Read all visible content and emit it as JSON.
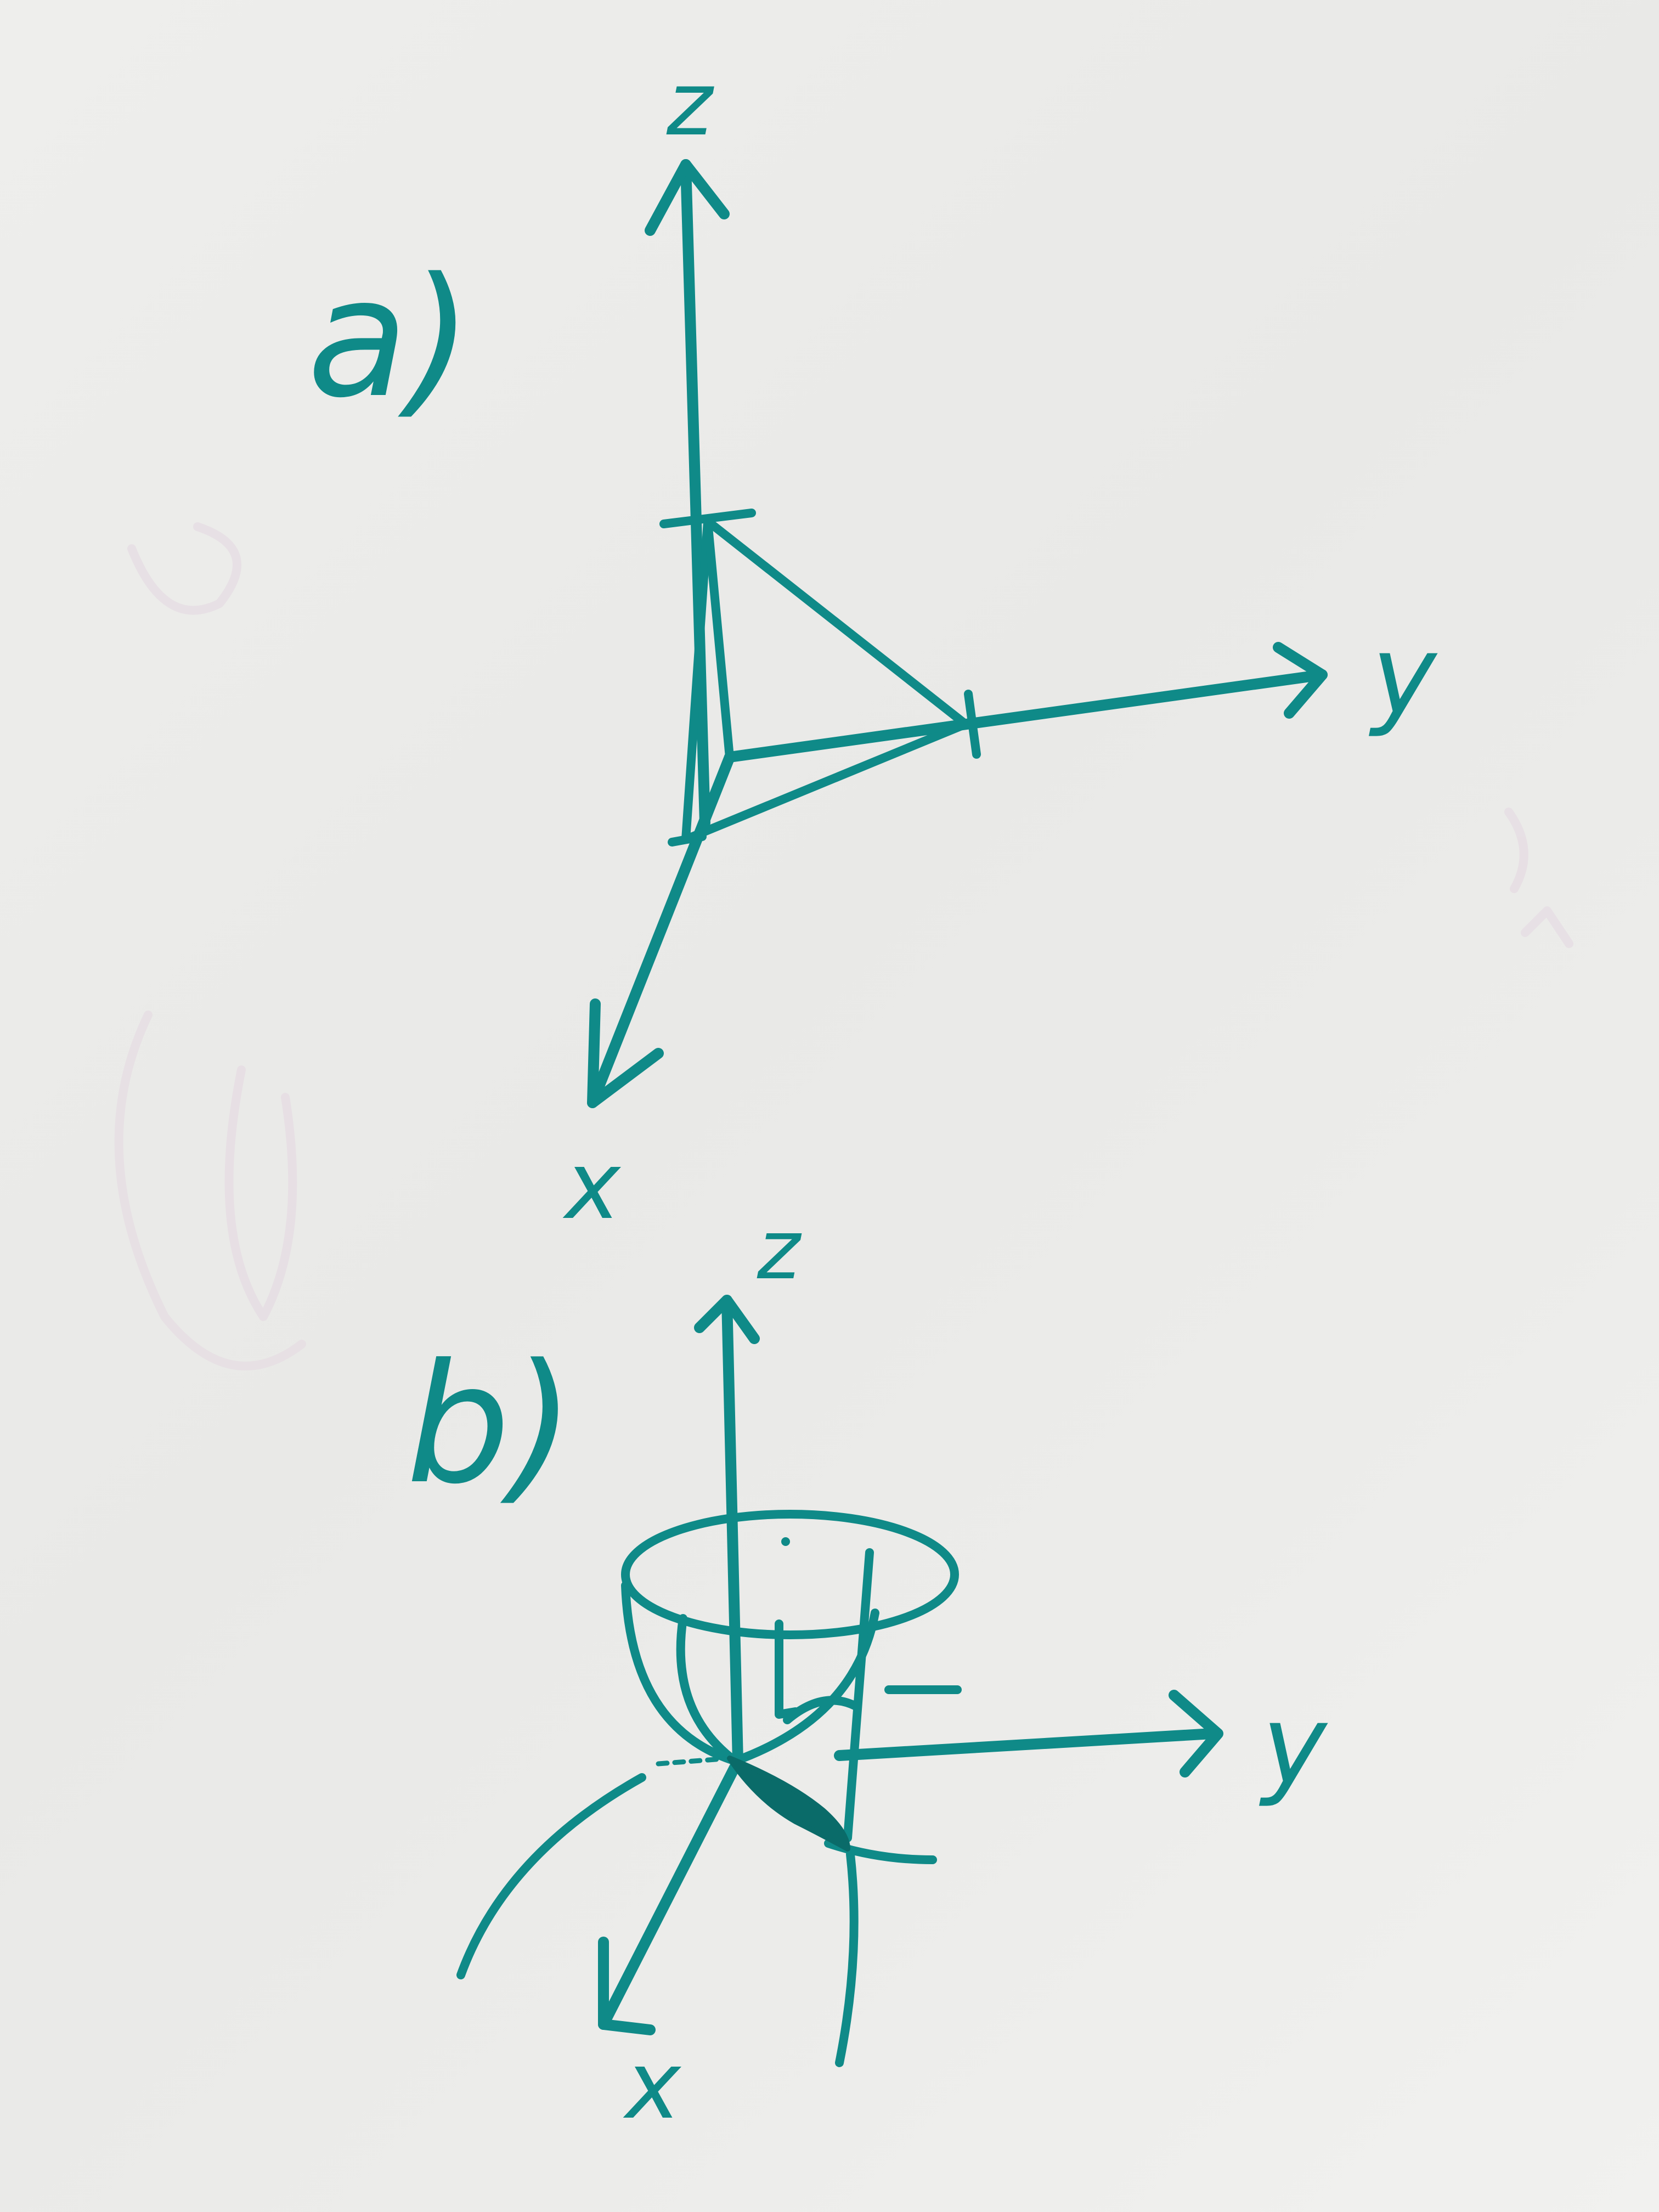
{
  "colors": {
    "paper": "#ececea",
    "ink": "#0f8a88",
    "ink_dark": "#0a6b69",
    "ghost": "#e3d9e1"
  },
  "diagram_a": {
    "label": "a)",
    "axes": {
      "z": "z",
      "y": "y",
      "x": "x"
    }
  },
  "diagram_b": {
    "label": "b)",
    "axes": {
      "z": "z",
      "y": "y",
      "x": "x"
    }
  }
}
